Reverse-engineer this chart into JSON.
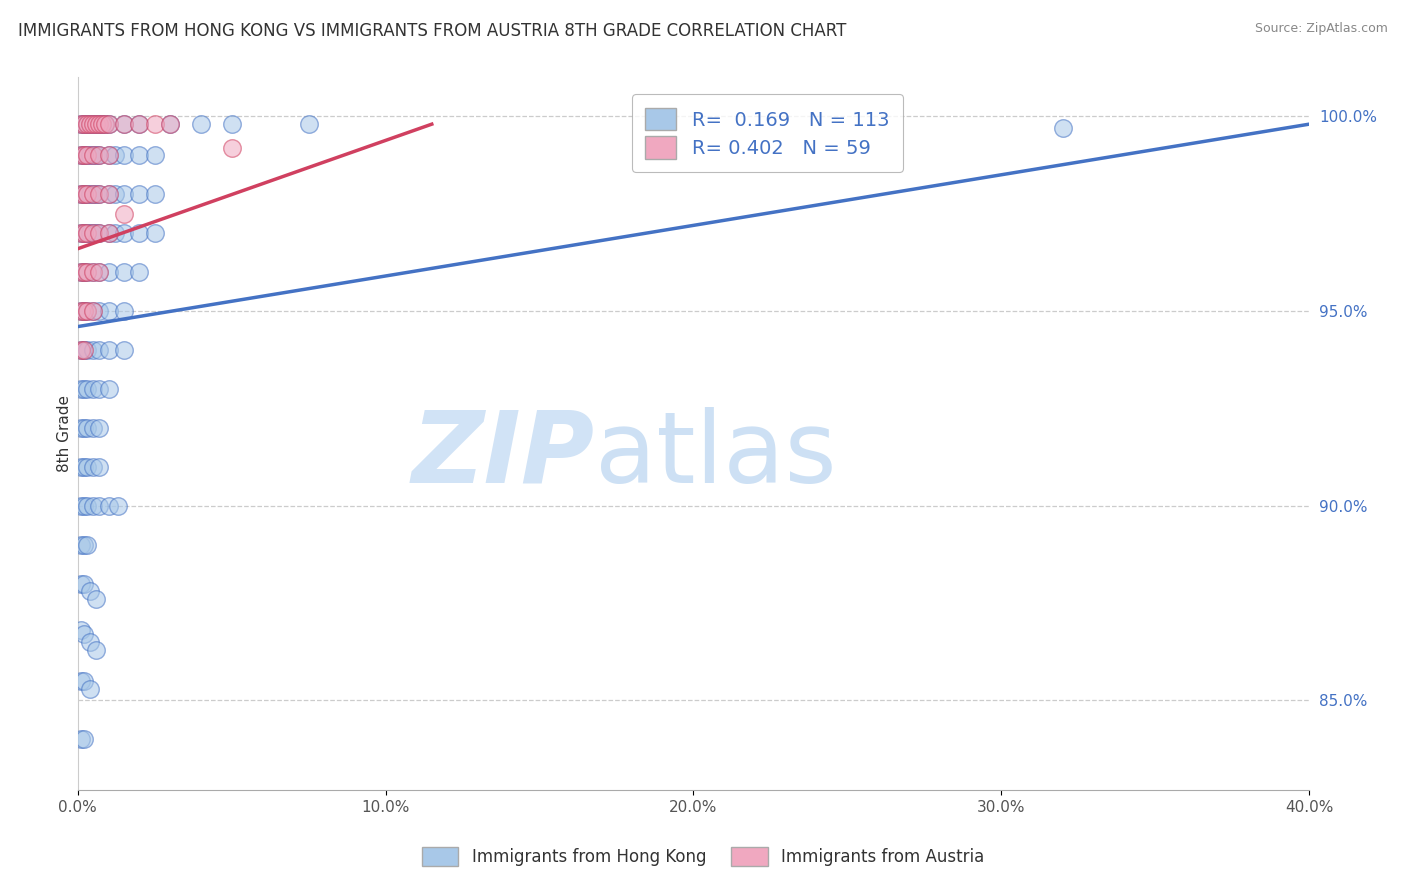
{
  "title": "IMMIGRANTS FROM HONG KONG VS IMMIGRANTS FROM AUSTRIA 8TH GRADE CORRELATION CHART",
  "source": "Source: ZipAtlas.com",
  "ylabel": "8th Grade",
  "xlim": [
    0.0,
    0.4
  ],
  "ylim": [
    0.827,
    1.01
  ],
  "blue_R": 0.169,
  "blue_N": 113,
  "pink_R": 0.402,
  "pink_N": 59,
  "blue_color": "#a8c8e8",
  "pink_color": "#f0a8c0",
  "blue_line_color": "#4472c4",
  "pink_line_color": "#d04060",
  "legend_label_blue": "Immigrants from Hong Kong",
  "legend_label_pink": "Immigrants from Austria",
  "background_color": "#ffffff",
  "grid_color": "#cccccc",
  "title_color": "#333333",
  "y_ticks": [
    0.85,
    0.9,
    0.95,
    1.0
  ],
  "y_tick_labels": [
    "85.0%",
    "90.0%",
    "95.0%",
    "100.0%"
  ],
  "x_ticks": [
    0.0,
    0.1,
    0.2,
    0.3,
    0.4
  ],
  "x_tick_labels": [
    "0.0%",
    "10.0%",
    "20.0%",
    "30.0%",
    "40.0%"
  ],
  "blue_trend_x": [
    0.0,
    0.4
  ],
  "blue_trend_y": [
    0.946,
    0.998
  ],
  "pink_trend_x": [
    0.0,
    0.115
  ],
  "pink_trend_y": [
    0.966,
    0.998
  ],
  "blue_scatter": [
    [
      0.001,
      0.998
    ],
    [
      0.002,
      0.998
    ],
    [
      0.003,
      0.998
    ],
    [
      0.004,
      0.998
    ],
    [
      0.005,
      0.998
    ],
    [
      0.006,
      0.998
    ],
    [
      0.007,
      0.998
    ],
    [
      0.008,
      0.998
    ],
    [
      0.009,
      0.998
    ],
    [
      0.01,
      0.998
    ],
    [
      0.015,
      0.998
    ],
    [
      0.02,
      0.998
    ],
    [
      0.03,
      0.998
    ],
    [
      0.04,
      0.998
    ],
    [
      0.05,
      0.998
    ],
    [
      0.075,
      0.998
    ],
    [
      0.001,
      0.99
    ],
    [
      0.002,
      0.99
    ],
    [
      0.003,
      0.99
    ],
    [
      0.004,
      0.99
    ],
    [
      0.005,
      0.99
    ],
    [
      0.006,
      0.99
    ],
    [
      0.007,
      0.99
    ],
    [
      0.01,
      0.99
    ],
    [
      0.012,
      0.99
    ],
    [
      0.015,
      0.99
    ],
    [
      0.02,
      0.99
    ],
    [
      0.025,
      0.99
    ],
    [
      0.001,
      0.98
    ],
    [
      0.002,
      0.98
    ],
    [
      0.003,
      0.98
    ],
    [
      0.004,
      0.98
    ],
    [
      0.005,
      0.98
    ],
    [
      0.006,
      0.98
    ],
    [
      0.007,
      0.98
    ],
    [
      0.01,
      0.98
    ],
    [
      0.012,
      0.98
    ],
    [
      0.015,
      0.98
    ],
    [
      0.02,
      0.98
    ],
    [
      0.025,
      0.98
    ],
    [
      0.001,
      0.97
    ],
    [
      0.002,
      0.97
    ],
    [
      0.003,
      0.97
    ],
    [
      0.004,
      0.97
    ],
    [
      0.005,
      0.97
    ],
    [
      0.006,
      0.97
    ],
    [
      0.007,
      0.97
    ],
    [
      0.01,
      0.97
    ],
    [
      0.012,
      0.97
    ],
    [
      0.015,
      0.97
    ],
    [
      0.02,
      0.97
    ],
    [
      0.025,
      0.97
    ],
    [
      0.001,
      0.96
    ],
    [
      0.002,
      0.96
    ],
    [
      0.003,
      0.96
    ],
    [
      0.005,
      0.96
    ],
    [
      0.007,
      0.96
    ],
    [
      0.01,
      0.96
    ],
    [
      0.015,
      0.96
    ],
    [
      0.02,
      0.96
    ],
    [
      0.001,
      0.95
    ],
    [
      0.002,
      0.95
    ],
    [
      0.003,
      0.95
    ],
    [
      0.005,
      0.95
    ],
    [
      0.007,
      0.95
    ],
    [
      0.01,
      0.95
    ],
    [
      0.015,
      0.95
    ],
    [
      0.001,
      0.94
    ],
    [
      0.002,
      0.94
    ],
    [
      0.003,
      0.94
    ],
    [
      0.005,
      0.94
    ],
    [
      0.007,
      0.94
    ],
    [
      0.01,
      0.94
    ],
    [
      0.015,
      0.94
    ],
    [
      0.001,
      0.93
    ],
    [
      0.002,
      0.93
    ],
    [
      0.003,
      0.93
    ],
    [
      0.005,
      0.93
    ],
    [
      0.007,
      0.93
    ],
    [
      0.01,
      0.93
    ],
    [
      0.001,
      0.92
    ],
    [
      0.002,
      0.92
    ],
    [
      0.003,
      0.92
    ],
    [
      0.005,
      0.92
    ],
    [
      0.007,
      0.92
    ],
    [
      0.001,
      0.91
    ],
    [
      0.002,
      0.91
    ],
    [
      0.003,
      0.91
    ],
    [
      0.005,
      0.91
    ],
    [
      0.007,
      0.91
    ],
    [
      0.001,
      0.9
    ],
    [
      0.002,
      0.9
    ],
    [
      0.003,
      0.9
    ],
    [
      0.005,
      0.9
    ],
    [
      0.007,
      0.9
    ],
    [
      0.01,
      0.9
    ],
    [
      0.013,
      0.9
    ],
    [
      0.001,
      0.89
    ],
    [
      0.002,
      0.89
    ],
    [
      0.003,
      0.89
    ],
    [
      0.001,
      0.88
    ],
    [
      0.002,
      0.88
    ],
    [
      0.004,
      0.878
    ],
    [
      0.006,
      0.876
    ],
    [
      0.001,
      0.868
    ],
    [
      0.002,
      0.867
    ],
    [
      0.004,
      0.865
    ],
    [
      0.006,
      0.863
    ],
    [
      0.001,
      0.855
    ],
    [
      0.002,
      0.855
    ],
    [
      0.004,
      0.853
    ],
    [
      0.001,
      0.84
    ],
    [
      0.002,
      0.84
    ],
    [
      0.32,
      0.997
    ]
  ],
  "pink_scatter": [
    [
      0.001,
      0.998
    ],
    [
      0.002,
      0.998
    ],
    [
      0.003,
      0.998
    ],
    [
      0.004,
      0.998
    ],
    [
      0.005,
      0.998
    ],
    [
      0.006,
      0.998
    ],
    [
      0.007,
      0.998
    ],
    [
      0.008,
      0.998
    ],
    [
      0.009,
      0.998
    ],
    [
      0.01,
      0.998
    ],
    [
      0.015,
      0.998
    ],
    [
      0.02,
      0.998
    ],
    [
      0.025,
      0.998
    ],
    [
      0.03,
      0.998
    ],
    [
      0.001,
      0.99
    ],
    [
      0.002,
      0.99
    ],
    [
      0.003,
      0.99
    ],
    [
      0.005,
      0.99
    ],
    [
      0.007,
      0.99
    ],
    [
      0.01,
      0.99
    ],
    [
      0.001,
      0.98
    ],
    [
      0.002,
      0.98
    ],
    [
      0.003,
      0.98
    ],
    [
      0.005,
      0.98
    ],
    [
      0.007,
      0.98
    ],
    [
      0.01,
      0.98
    ],
    [
      0.001,
      0.97
    ],
    [
      0.002,
      0.97
    ],
    [
      0.003,
      0.97
    ],
    [
      0.005,
      0.97
    ],
    [
      0.007,
      0.97
    ],
    [
      0.01,
      0.97
    ],
    [
      0.001,
      0.96
    ],
    [
      0.002,
      0.96
    ],
    [
      0.003,
      0.96
    ],
    [
      0.005,
      0.96
    ],
    [
      0.007,
      0.96
    ],
    [
      0.001,
      0.95
    ],
    [
      0.002,
      0.95
    ],
    [
      0.003,
      0.95
    ],
    [
      0.005,
      0.95
    ],
    [
      0.001,
      0.94
    ],
    [
      0.002,
      0.94
    ],
    [
      0.05,
      0.992
    ],
    [
      0.015,
      0.975
    ]
  ]
}
